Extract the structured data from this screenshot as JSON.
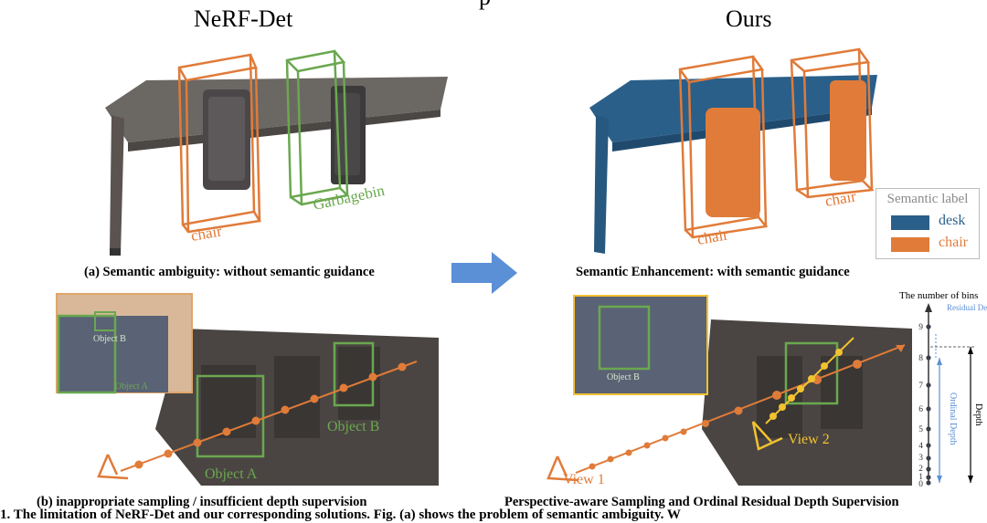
{
  "header": {
    "partial_title": "p",
    "left_title": "NeRF-Det",
    "right_title": "Ours"
  },
  "top_left": {
    "labels": {
      "chair": "chair",
      "garbagebin": "Garbagebin"
    },
    "caption": "(a) Semantic ambiguity: without semantic guidance"
  },
  "top_right": {
    "labels": {
      "chair_1": "chair",
      "chair_2": "chair"
    },
    "caption": "Semantic Enhancement: with semantic guidance",
    "legend": {
      "title": "Semantic label",
      "items": [
        {
          "label": "desk",
          "color": "#2a5f8a"
        },
        {
          "label": "chair",
          "color": "#e07b39"
        }
      ]
    }
  },
  "bottom_left": {
    "inset_labels": {
      "object_b": "Object B",
      "object_a": "Object A"
    },
    "scene_labels": {
      "object_a": "Object A",
      "object_b": "Object B"
    },
    "caption": "(b) inappropriate sampling / insufficient depth supervision"
  },
  "bottom_right": {
    "inset_label": "Object B",
    "view_labels": {
      "view_1": "View 1",
      "view_2": "View 2"
    },
    "caption": "Perspective-aware Sampling and Ordinal Residual Depth Supervision"
  },
  "depth_axis": {
    "title": "The number of bins",
    "residual_label": "Residual\nDepth",
    "ordinal_label": "Ordinal Depth",
    "depth_label": "Depth",
    "ticks": [
      "9",
      "8",
      "7",
      "6",
      "5",
      "4",
      "3",
      "2",
      "1",
      "0"
    ]
  },
  "footer": {
    "cut_text": "1. The limitation of NeRF-Det and our corresponding solutions. Fig. (a) shows the problem of semantic ambiguity. W"
  },
  "colors": {
    "orange": "#e07b39",
    "green": "#6aa84f",
    "yellow": "#f2c230",
    "arrow_blue": "#5b8fd6",
    "desk_blue": "#2a5f8a"
  }
}
